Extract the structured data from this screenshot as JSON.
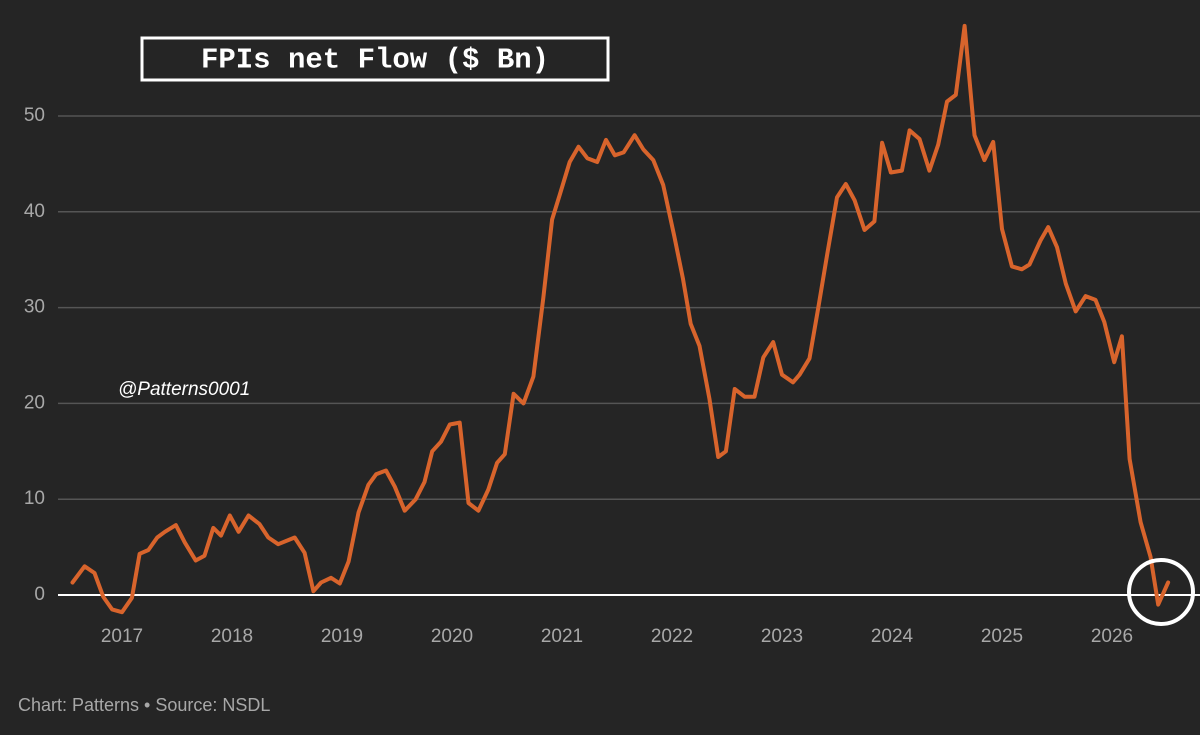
{
  "chart_data": {
    "type": "line",
    "title": "FPIs net Flow ($ Bn)",
    "watermark": "@Patterns0001",
    "source": "Chart: Patterns • Source: NSDL",
    "x": [
      2016.55,
      2016.66,
      2016.75,
      2016.83,
      2016.91,
      2017.0,
      2017.09,
      2017.16,
      2017.24,
      2017.32,
      2017.39,
      2017.49,
      2017.57,
      2017.67,
      2017.75,
      2017.83,
      2017.9,
      2017.98,
      2018.06,
      2018.15,
      2018.25,
      2018.33,
      2018.42,
      2018.57,
      2018.66,
      2018.74,
      2018.81,
      2018.9,
      2018.98,
      2019.06,
      2019.15,
      2019.24,
      2019.31,
      2019.4,
      2019.48,
      2019.57,
      2019.67,
      2019.75,
      2019.82,
      2019.9,
      2019.98,
      2020.07,
      2020.15,
      2020.24,
      2020.33,
      2020.41,
      2020.48,
      2020.56,
      2020.65,
      2020.74,
      2020.83,
      2020.91,
      2020.98,
      2021.07,
      2021.15,
      2021.23,
      2021.32,
      2021.4,
      2021.48,
      2021.56,
      2021.66,
      2021.74,
      2021.83,
      2021.92,
      2022.02,
      2022.1,
      2022.17,
      2022.25,
      2022.34,
      2022.42,
      2022.49,
      2022.57,
      2022.66,
      2022.75,
      2022.83,
      2022.92,
      2023.0,
      2023.1,
      2023.16,
      2023.25,
      2023.33,
      2023.41,
      2023.5,
      2023.58,
      2023.66,
      2023.75,
      2023.84,
      2023.91,
      2023.99,
      2024.09,
      2024.16,
      2024.25,
      2024.34,
      2024.42,
      2024.5,
      2024.58,
      2024.66,
      2024.75,
      2024.84,
      2024.92,
      2025.0,
      2025.09,
      2025.18,
      2025.25,
      2025.35,
      2025.42,
      2025.5,
      2025.58,
      2025.67,
      2025.76,
      2025.85,
      2025.93,
      2026.02,
      2026.09,
      2026.16,
      2026.26,
      2026.35,
      2026.42,
      2026.51
    ],
    "values": [
      1.3,
      3.0,
      2.3,
      -0.2,
      -1.5,
      -1.8,
      -0.3,
      4.3,
      4.7,
      6.0,
      6.6,
      7.3,
      5.5,
      3.6,
      4.1,
      7.0,
      6.2,
      8.3,
      6.6,
      8.3,
      7.4,
      6.0,
      5.3,
      6.0,
      4.4,
      0.4,
      1.3,
      1.8,
      1.2,
      3.5,
      8.6,
      11.5,
      12.6,
      13.0,
      11.3,
      8.8,
      10.0,
      11.8,
      15.0,
      16.0,
      17.8,
      18.0,
      9.6,
      8.8,
      11.0,
      13.8,
      14.7,
      21.0,
      20.0,
      22.8,
      31.0,
      39.2,
      41.8,
      45.2,
      46.8,
      45.6,
      45.2,
      47.5,
      45.9,
      46.2,
      48.0,
      46.5,
      45.4,
      42.8,
      37.5,
      33.0,
      28.3,
      26.0,
      20.5,
      14.4,
      15.0,
      21.5,
      20.7,
      20.7,
      24.8,
      26.4,
      23.0,
      22.2,
      23.0,
      24.7,
      30.0,
      35.5,
      41.5,
      42.9,
      41.2,
      38.1,
      39.0,
      47.2,
      44.1,
      44.3,
      48.5,
      47.6,
      44.3,
      47.0,
      51.5,
      52.2,
      59.4,
      48.0,
      45.4,
      47.3,
      38.2,
      34.3,
      34.0,
      34.5,
      37.0,
      38.4,
      36.3,
      32.5,
      29.6,
      31.2,
      30.8,
      28.5,
      24.3,
      27.0,
      14.2,
      7.6,
      4.0,
      -1.0,
      1.3
    ],
    "color": "#d8642c",
    "xlim": [
      2016.4,
      2026.75
    ],
    "xticks": [
      2017,
      2018,
      2019,
      2020,
      2021,
      2022,
      2023,
      2024,
      2025,
      2026
    ],
    "ylim": [
      -3,
      60
    ],
    "yticks": [
      0,
      10,
      20,
      30,
      40,
      50
    ],
    "grid": true
  }
}
